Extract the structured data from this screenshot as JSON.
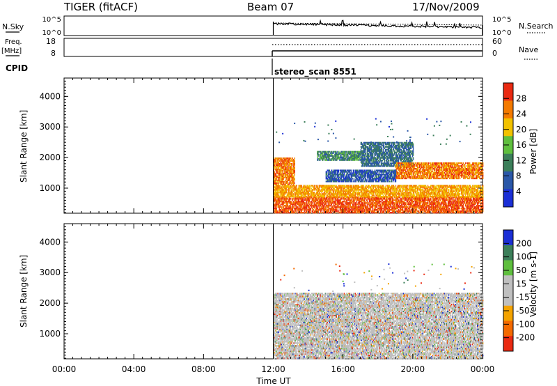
{
  "header": {
    "title": "TIGER (fitACF)",
    "beam": "Beam 07",
    "date": "17/Nov/2009"
  },
  "top_panels": {
    "nsky_label": "N.Sky",
    "nsearch_label": "N.Search",
    "nsky_ticks": [
      "10^5",
      "10^0"
    ],
    "nsearch_ticks": [
      "10^5",
      "10^0"
    ],
    "freq_label_1": "Freq.",
    "freq_label_2": "[MHz]",
    "freq_ticks": [
      "18",
      "8"
    ],
    "nave_label": "Nave",
    "nave_ticks": [
      "60",
      "0"
    ],
    "cpid_label": "CPID",
    "cpid_text": "stereo_scan 8551"
  },
  "colors": {
    "power_scale": [
      "#1b2fd6",
      "#2a57a8",
      "#3c7f5a",
      "#5fbf3e",
      "#f2c200",
      "#f47a00",
      "#ea2a12"
    ],
    "velocity_scale": [
      "#ea2a12",
      "#f46a00",
      "#f4a300",
      "#bfbfbf",
      "#bfbfbf",
      "#5fbf3e",
      "#3c7f5a",
      "#1b2fd6"
    ],
    "ground_grey": "#bfbfbf"
  },
  "chart_data": [
    {
      "type": "heatmap",
      "name": "power",
      "ylabel": "Slant Range [km]",
      "xlabel": "Time UT",
      "xlim": [
        0,
        24
      ],
      "ylim": [
        180,
        4600
      ],
      "y_ticks": [
        "1000",
        "2000",
        "3000",
        "4000"
      ],
      "x_ticks": [
        "00:00",
        "04:00",
        "08:00",
        "12:00",
        "16:00",
        "20:00",
        "00:00"
      ],
      "colorbar_label": "Power [dB]",
      "colorbar_ticks": [
        "28",
        "24",
        "20",
        "16",
        "12",
        "8",
        "4"
      ],
      "data_start_hour": 12,
      "bands": [
        {
          "t0": 12,
          "t1": 24,
          "r0": 180,
          "r1": 700,
          "level": 26
        },
        {
          "t0": 12,
          "t1": 24,
          "r0": 700,
          "r1": 1100,
          "level": 22
        },
        {
          "t0": 12,
          "t1": 13.2,
          "r0": 1100,
          "r1": 2000,
          "level": 24
        },
        {
          "t0": 14.5,
          "t1": 17,
          "r0": 1900,
          "r1": 2200,
          "level": 12
        },
        {
          "t0": 17,
          "t1": 20,
          "r0": 1700,
          "r1": 2500,
          "level": 10
        },
        {
          "t0": 19,
          "t1": 24,
          "r0": 1300,
          "r1": 1800,
          "level": 24
        },
        {
          "t0": 15,
          "t1": 19,
          "r0": 1200,
          "r1": 1600,
          "level": 8
        }
      ]
    },
    {
      "type": "heatmap",
      "name": "velocity",
      "ylabel": "Slant Range [km]",
      "xlabel": "Time UT",
      "xlim": [
        0,
        24
      ],
      "ylim": [
        180,
        4600
      ],
      "y_ticks": [
        "1000",
        "2000",
        "3000",
        "4000"
      ],
      "x_ticks": [
        "00:00",
        "04:00",
        "08:00",
        "12:00",
        "16:00",
        "20:00",
        "00:00"
      ],
      "colorbar_label": "Velocity [m s-1]",
      "colorbar_ticks": [
        "200",
        "100",
        "50",
        "15",
        "-15",
        "-50",
        "-100",
        "-200"
      ],
      "data_start_hour": 12,
      "bands": [
        {
          "t0": 12,
          "t1": 24,
          "r0": 180,
          "r1": 2300,
          "level": "grey"
        }
      ]
    }
  ],
  "axis": {
    "x_title": "Time UT"
  }
}
